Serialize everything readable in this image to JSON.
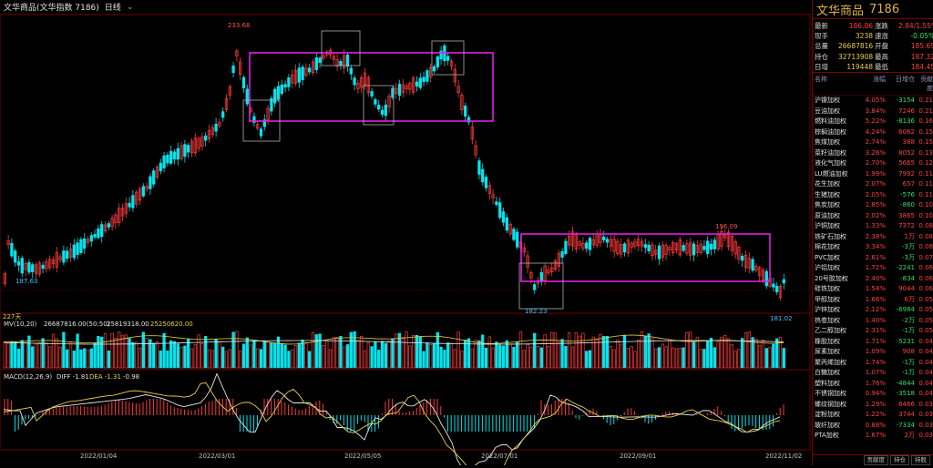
{
  "header": {
    "title": "文华商品(文华指数 7186)",
    "period": "日线"
  },
  "colors": {
    "up": "#ff3a3a",
    "down": "#00e5ee",
    "rect": "#e020e0",
    "box": "#b0b0b0",
    "ma": "#e8d040",
    "diff": "#e8e8e8",
    "dea": "#e8d040"
  },
  "price_chart": {
    "labels": {
      "high": "233.68",
      "low1": "187.63",
      "rangehigh": "196.09",
      "rangelow": "182.23",
      "last": "181.02"
    },
    "days_label": "227天"
  },
  "volume": {
    "title": "MV(10,20)",
    "v1": "26687816.00(50:50)",
    "v2": "25819318.00",
    "v3": "25250620.00"
  },
  "macd": {
    "title": "MACD(12,26,9)",
    "diff": "DIFF -1.81",
    "dea": "DEA -1.31",
    "macd": "-0.98"
  },
  "dates": [
    "2022/01/04",
    "2022/03/01",
    "2022/05/05",
    "2022/07/01",
    "2022/09/01",
    "2022/11/02"
  ],
  "chart_data": {
    "type": "line",
    "title": "文华商品",
    "x": [
      "2022/01/04",
      "2022/03/01",
      "2022/05/05",
      "2022/07/01",
      "2022/09/01",
      "2022/11/02"
    ],
    "series": [
      {
        "name": "文华商品",
        "values": [
          190,
          233.68,
          222,
          205,
          190,
          181.02
        ]
      }
    ],
    "ylim": [
      178,
      240
    ]
  },
  "panel": {
    "name": "文华商品",
    "code": "7186",
    "quote": [
      [
        "最新",
        "186.06",
        "涨跌",
        "2.84/1.55%"
      ],
      [
        "现手",
        "3238",
        "速涨",
        "-0.05%"
      ],
      [
        "总量",
        "26687816",
        "开盘",
        "185.69"
      ],
      [
        "持仓",
        "32713908",
        "最高",
        "187.32"
      ],
      [
        "日增",
        "119448",
        "最低",
        "184.45"
      ]
    ],
    "list_headers": [
      "名称",
      "涨幅",
      "日增仓",
      "贡献度"
    ],
    "list": [
      [
        "沪镍加权",
        "4.05%",
        "-3154",
        "0.21"
      ],
      [
        "豆油加权",
        "3.84%",
        "7246",
        "0.21"
      ],
      [
        "燃料油加权",
        "5.22%",
        "-8136",
        "0.16"
      ],
      [
        "棕榈油加权",
        "4.24%",
        "6062",
        "0.15"
      ],
      [
        "焦煤加权",
        "2.74%",
        "388",
        "0.15"
      ],
      [
        "菜籽油加权",
        "3.26%",
        "8052",
        "0.13"
      ],
      [
        "液化气加权",
        "2.70%",
        "5665",
        "0.12"
      ],
      [
        "LU燃油加权",
        "1.99%",
        "7992",
        "0.11"
      ],
      [
        "花生加权",
        "2.07%",
        "657",
        "0.11"
      ],
      [
        "生猪加权",
        "2.05%",
        "-576",
        "0.11"
      ],
      [
        "焦炭加权",
        "1.85%",
        "-860",
        "0.10"
      ],
      [
        "原油加权",
        "2.02%",
        "3865",
        "0.10"
      ],
      [
        "沪铜加权",
        "1.33%",
        "7372",
        "0.08"
      ],
      [
        "铁矿石加权",
        "2.38%",
        "1万",
        "0.08"
      ],
      [
        "棉花加权",
        "3.34%",
        "-3万",
        "0.08"
      ],
      [
        "PVC加权",
        "2.61%",
        "-3万",
        "0.07"
      ],
      [
        "沪铝加权",
        "1.72%",
        "-2241",
        "0.06"
      ],
      [
        "20号胶加权",
        "2.40%",
        "-834",
        "0.06"
      ],
      [
        "硅铁加权",
        "1.54%",
        "9044",
        "0.06"
      ],
      [
        "甲醇加权",
        "1.66%",
        "6万",
        "0.05"
      ],
      [
        "沪锌加权",
        "2.12%",
        "-6984",
        "0.05"
      ],
      [
        "热卷加权",
        "1.40%",
        "-2万",
        "0.05"
      ],
      [
        "乙二醇加权",
        "2.31%",
        "-1万",
        "0.05"
      ],
      [
        "橡胶加权",
        "1.71%",
        "-5231",
        "0.04"
      ],
      [
        "尿素加权",
        "1.09%",
        "908",
        "0.04"
      ],
      [
        "聚丙烯加权",
        "1.74%",
        "-1万",
        "0.04"
      ],
      [
        "白糖加权",
        "1.07%",
        "-1万",
        "0.04"
      ],
      [
        "塑料加权",
        "1.76%",
        "-4844",
        "0.04"
      ],
      [
        "不锈钢加权",
        "0.94%",
        "-3518",
        "0.04"
      ],
      [
        "螺纹钢加权",
        "1.29%",
        "6466",
        "0.03"
      ],
      [
        "淀粉加权",
        "1.22%",
        "3744",
        "0.03"
      ],
      [
        "玻纤加权",
        "0.88%",
        "-7334",
        "0.03"
      ],
      [
        "PTA加权",
        "1.67%",
        "2万",
        "0.03"
      ]
    ],
    "footer_tabs": [
      "贡献度",
      "持仓",
      "持股"
    ]
  }
}
